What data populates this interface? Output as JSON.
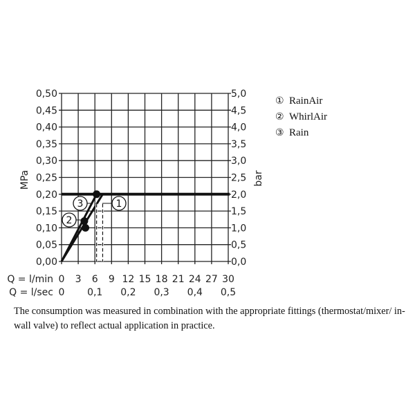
{
  "chart_data": {
    "type": "line",
    "ylabel_left": "MPa",
    "ylabel_right": "bar",
    "xlim": [
      0,
      30
    ],
    "ylim": [
      0,
      0.5
    ],
    "grid": true,
    "legend_position": "right",
    "y_ticks_left": [
      "0,00",
      "0,05",
      "0,10",
      "0,15",
      "0,20",
      "0,25",
      "0,30",
      "0,35",
      "0,40",
      "0,45",
      "0,50"
    ],
    "y_ticks_right": [
      "0,0",
      "0,5",
      "1,0",
      "1,5",
      "2,0",
      "2,5",
      "3,0",
      "3,5",
      "4,0",
      "4,5",
      "5,0"
    ],
    "x_axis_lmin_label": "Q = l/min",
    "x_ticks_lmin": [
      "0",
      "3",
      "6",
      "9",
      "12",
      "15",
      "18",
      "21",
      "24",
      "27",
      "30"
    ],
    "x_axis_lsec_label": "Q = l/sec",
    "x_ticks_lsec": [
      "0",
      "0,1",
      "0,2",
      "0,3",
      "0,4",
      "0,5"
    ],
    "reference_pressure": 0.2,
    "series": [
      {
        "name": "RainAir",
        "marker": "1",
        "points": [
          [
            0,
            0
          ],
          [
            7.4,
            0.2
          ]
        ],
        "dashed_drop_x": 7.4
      },
      {
        "name": "WhirlAir",
        "marker": "2",
        "points": [
          [
            4.2,
            0.12
          ]
        ]
      },
      {
        "name": "Rain",
        "marker": "3",
        "points": [
          [
            0,
            0
          ],
          [
            6.3,
            0.2
          ]
        ],
        "dashed_drop_x": 6.3
      }
    ],
    "dots": [
      [
        6.3,
        0.2
      ],
      [
        4.1,
        0.12
      ],
      [
        4.3,
        0.1
      ]
    ],
    "legend": [
      {
        "marker": "①",
        "label": "RainAir"
      },
      {
        "marker": "②",
        "label": "WhirlAir"
      },
      {
        "marker": "③",
        "label": "Rain"
      }
    ]
  },
  "note": "The consumption was measured in combination with the appropriate fittings (thermostat/mixer/ in-wall valve) to reflect actual application in practice."
}
